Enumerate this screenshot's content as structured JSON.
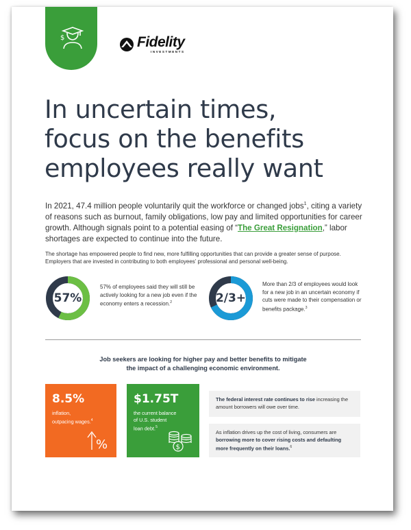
{
  "brand": {
    "logo_word": "Fidelity",
    "logo_sub": "INVESTMENTS",
    "tab_color": "#3a9e3a",
    "tab_icon": "graduate-dollar-icon"
  },
  "title": {
    "line1": "In uncertain times,",
    "line2": "focus on the benefits",
    "line3": "employees really want"
  },
  "intro": {
    "part1": "In 2021, 47.4 million people voluntarily quit the workforce or changed jobs",
    "sup1": "1",
    "part2": ", citing a variety of reasons such as burnout, family obligations, low pay and limited opportunities for career growth. Although signals point to a potential easing of “",
    "link": "The Great Resignation",
    "part3": ",” labor shortages are expected to continue into the future."
  },
  "note": "The shortage has empowered people to find new, more fulfilling opportunities that can provide a greater sense of purpose. Employers that are invested in contributing to both employees’ professional and personal well-being.",
  "stats": [
    {
      "label": "57%",
      "fill": 0.57,
      "color": "#6cbf44",
      "text": "57% of employees said they will still be actively looking for a new job even if the economy enters a recession.",
      "sup": "2"
    },
    {
      "label": "2/3+",
      "fill": 0.68,
      "color": "#1b9ad6",
      "text": "More than 2/3 of employees would look for a new job in an uncertain economy if cuts were made to their compensation or benefits package.",
      "sup": "3"
    }
  ],
  "headline": {
    "line1": "Job seekers are looking for higher pay and better benefits to mitigate",
    "line2": "the impact of a challenging economic environment."
  },
  "boxes": [
    {
      "big": "8.5%",
      "line1": "inflation,",
      "line2": "outpacing wages.",
      "sup": "4",
      "line3": "",
      "color": "#f26a22",
      "icon": "percent-up-arrow-icon"
    },
    {
      "big": "$1.75T",
      "line1": "the current balance",
      "line2": "of U.S. student",
      "line3": "loan debt.",
      "sup": "5",
      "color": "#3a9e3a",
      "icon": "coin-stacks-icon"
    }
  ],
  "notes": [
    {
      "bold": "The federal interest rate continues to rise",
      "rest": " increasing the amount borrowers will owe over time."
    },
    {
      "plain": "As inflation drives up the cost of living, consumers are ",
      "bold": "borrowing more to cover rising costs and defaulting more frequently on their loans.",
      "sup": "6"
    }
  ]
}
